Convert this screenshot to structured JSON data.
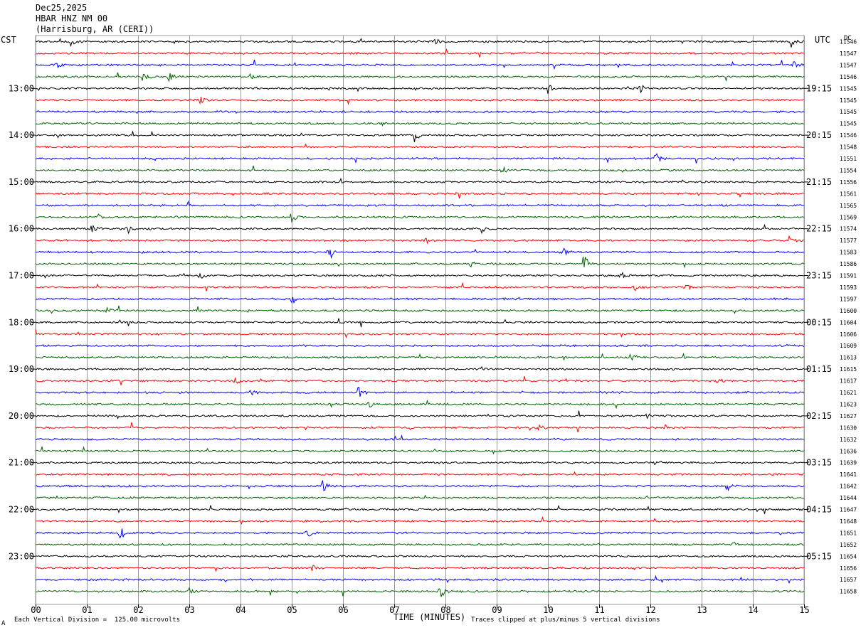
{
  "header": {
    "date": "Dec25,2025",
    "station": "HBAR HNZ NM 00",
    "location": "(Harrisburg, AR (CERI))"
  },
  "left_timezone": "CST",
  "right_timezone": "UTC",
  "dc_label": "DC",
  "footer": {
    "scale_note": "Each Vertical Division =  125.00 microvolts",
    "clip_note": "Traces clipped at plus/minus 5 vertical divisions",
    "corner_mark": "A"
  },
  "colors": {
    "trace_cycle": [
      "#000000",
      "#ff0000",
      "#0000ff",
      "#006400"
    ],
    "grid": "#9a9a9a"
  },
  "chart_data": {
    "type": "line",
    "title": "",
    "xlabel": "TIME (MINUTES)",
    "xlim": [
      0,
      15
    ],
    "x_tick_labels": [
      "00",
      "01",
      "02",
      "03",
      "04",
      "05",
      "06",
      "07",
      "08",
      "09",
      "10",
      "11",
      "12",
      "13",
      "14",
      "15"
    ],
    "left_hour_labels": [
      "13:00",
      "14:00",
      "15:00",
      "16:00",
      "17:00",
      "18:00",
      "19:00",
      "20:00",
      "21:00",
      "22:00",
      "23:00"
    ],
    "right_hour_labels": [
      "19:15",
      "20:15",
      "21:15",
      "22:15",
      "23:15",
      "00:15",
      "01:15",
      "02:15",
      "03:15",
      "04:15",
      "05:15"
    ],
    "hour_label_first_trace": 4,
    "traces_per_hour": 4,
    "dc_values": [
      "11546",
      "11547",
      "11547",
      "11546",
      "11545",
      "11545",
      "11545",
      "11545",
      "11546",
      "11548",
      "11551",
      "11554",
      "11556",
      "11561",
      "11565",
      "11569",
      "11574",
      "11577",
      "11583",
      "11586",
      "11591",
      "11593",
      "11597",
      "11600",
      "11604",
      "11606",
      "11609",
      "11613",
      "11615",
      "11617",
      "11621",
      "11623",
      "11627",
      "11630",
      "11632",
      "11636",
      "11639",
      "11641",
      "11642",
      "11644",
      "11647",
      "11648",
      "11651",
      "11652",
      "11654",
      "11656",
      "11657",
      "11658"
    ],
    "events": [
      {
        "trace": 0,
        "minute": 0.7,
        "amp": 8
      },
      {
        "trace": 0,
        "minute": 7.8,
        "amp": 4
      },
      {
        "trace": 0,
        "minute": 14.75,
        "amp": 8
      },
      {
        "trace": 2,
        "minute": 0.4,
        "amp": 6
      },
      {
        "trace": 2,
        "minute": 14.8,
        "amp": 5
      },
      {
        "trace": 3,
        "minute": 2.1,
        "amp": 9
      },
      {
        "trace": 3,
        "minute": 2.6,
        "amp": 8
      },
      {
        "trace": 3,
        "minute": 4.2,
        "amp": 5
      },
      {
        "trace": 4,
        "minute": 10.0,
        "amp": 8
      },
      {
        "trace": 4,
        "minute": 11.8,
        "amp": 6
      },
      {
        "trace": 5,
        "minute": 3.2,
        "amp": 7
      },
      {
        "trace": 8,
        "minute": 7.4,
        "amp": 10
      },
      {
        "trace": 10,
        "minute": 12.1,
        "amp": 9
      },
      {
        "trace": 11,
        "minute": 9.1,
        "amp": 6
      },
      {
        "trace": 15,
        "minute": 1.2,
        "amp": 7
      },
      {
        "trace": 15,
        "minute": 5.0,
        "amp": 8
      },
      {
        "trace": 15,
        "minute": 11.1,
        "amp": 6
      },
      {
        "trace": 16,
        "minute": 1.1,
        "amp": 8
      },
      {
        "trace": 16,
        "minute": 1.8,
        "amp": 8
      },
      {
        "trace": 16,
        "minute": 8.7,
        "amp": 6
      },
      {
        "trace": 17,
        "minute": 7.6,
        "amp": 6
      },
      {
        "trace": 17,
        "minute": 14.7,
        "amp": 6
      },
      {
        "trace": 18,
        "minute": 5.7,
        "amp": 14
      },
      {
        "trace": 18,
        "minute": 10.3,
        "amp": 8
      },
      {
        "trace": 19,
        "minute": 10.7,
        "amp": 16
      },
      {
        "trace": 19,
        "minute": 8.5,
        "amp": 5
      },
      {
        "trace": 20,
        "minute": 3.2,
        "amp": 6
      },
      {
        "trace": 20,
        "minute": 11.4,
        "amp": 8
      },
      {
        "trace": 21,
        "minute": 11.7,
        "amp": 5
      },
      {
        "trace": 21,
        "minute": 12.7,
        "amp": 5
      },
      {
        "trace": 22,
        "minute": 5.0,
        "amp": 9
      },
      {
        "trace": 23,
        "minute": 1.4,
        "amp": 4
      },
      {
        "trace": 27,
        "minute": 11.6,
        "amp": 9
      },
      {
        "trace": 29,
        "minute": 3.9,
        "amp": 8
      },
      {
        "trace": 29,
        "minute": 13.3,
        "amp": 5
      },
      {
        "trace": 30,
        "minute": 6.3,
        "amp": 9
      },
      {
        "trace": 30,
        "minute": 4.2,
        "amp": 6
      },
      {
        "trace": 31,
        "minute": 6.5,
        "amp": 5
      },
      {
        "trace": 32,
        "minute": 8.8,
        "amp": 4
      },
      {
        "trace": 32,
        "minute": 11.9,
        "amp": 5
      },
      {
        "trace": 33,
        "minute": 9.8,
        "amp": 7
      },
      {
        "trace": 33,
        "minute": 12.3,
        "amp": 5
      },
      {
        "trace": 36,
        "minute": 12.1,
        "amp": 7
      },
      {
        "trace": 38,
        "minute": 5.6,
        "amp": 10
      },
      {
        "trace": 38,
        "minute": 13.5,
        "amp": 7
      },
      {
        "trace": 41,
        "minute": 6.2,
        "amp": 6
      },
      {
        "trace": 42,
        "minute": 1.65,
        "amp": 10
      },
      {
        "trace": 42,
        "minute": 5.3,
        "amp": 8
      },
      {
        "trace": 43,
        "minute": 13.6,
        "amp": 7
      },
      {
        "trace": 45,
        "minute": 5.4,
        "amp": 5
      },
      {
        "trace": 47,
        "minute": 7.9,
        "amp": 10
      },
      {
        "trace": 47,
        "minute": 3.0,
        "amp": 5
      }
    ]
  }
}
